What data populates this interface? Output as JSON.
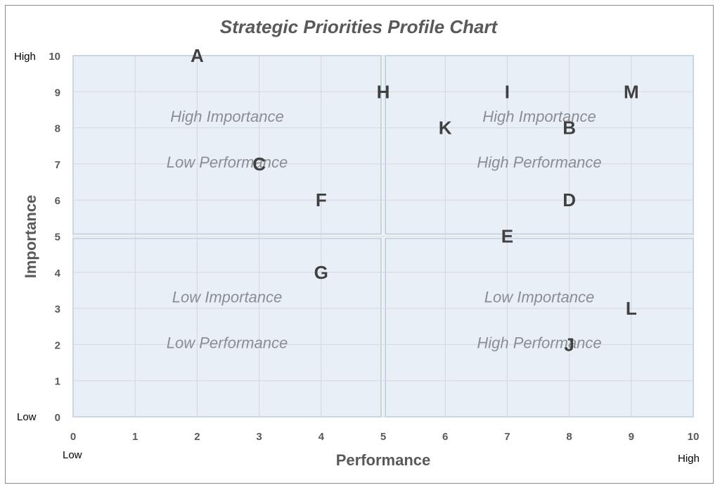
{
  "chart_data": {
    "type": "scatter",
    "title": "Strategic Priorities Profile Chart",
    "xlabel": "Performance",
    "ylabel": "Importance",
    "xlim": [
      0,
      10
    ],
    "ylim": [
      0,
      10
    ],
    "x_ticks": [
      "0",
      "1",
      "2",
      "3",
      "4",
      "5",
      "6",
      "7",
      "8",
      "9",
      "10"
    ],
    "y_ticks": [
      "0",
      "1",
      "2",
      "3",
      "4",
      "5",
      "6",
      "7",
      "8",
      "9",
      "10"
    ],
    "x_low_label": "Low",
    "x_high_label": "High",
    "y_low_label": "Low",
    "y_high_label": "High",
    "grid": true,
    "quadrants": [
      {
        "id": "top-left",
        "line1": "High Importance",
        "line2": "Low Performance"
      },
      {
        "id": "top-right",
        "line1": "High Importance",
        "line2": "High Performance"
      },
      {
        "id": "bottom-left",
        "line1": "Low Importance",
        "line2": "Low Performance"
      },
      {
        "id": "bottom-right",
        "line1": "Low Importance",
        "line2": "High Performance"
      }
    ],
    "points": [
      {
        "label": "A",
        "x": 2,
        "y": 10
      },
      {
        "label": "B",
        "x": 8,
        "y": 8
      },
      {
        "label": "C",
        "x": 3,
        "y": 7
      },
      {
        "label": "D",
        "x": 8,
        "y": 6
      },
      {
        "label": "E",
        "x": 7,
        "y": 5
      },
      {
        "label": "F",
        "x": 4,
        "y": 6
      },
      {
        "label": "G",
        "x": 4,
        "y": 4
      },
      {
        "label": "H",
        "x": 5,
        "y": 9
      },
      {
        "label": "I",
        "x": 7,
        "y": 9
      },
      {
        "label": "J",
        "x": 8,
        "y": 2
      },
      {
        "label": "K",
        "x": 6,
        "y": 8
      },
      {
        "label": "L",
        "x": 9,
        "y": 3
      },
      {
        "label": "M",
        "x": 9,
        "y": 9
      }
    ],
    "colors": {
      "quadrant_fill": "#e9eff7",
      "quadrant_border": "#c0d3e6",
      "grid": "#d4d8dd",
      "text": "#595959",
      "point": "#404040"
    }
  }
}
